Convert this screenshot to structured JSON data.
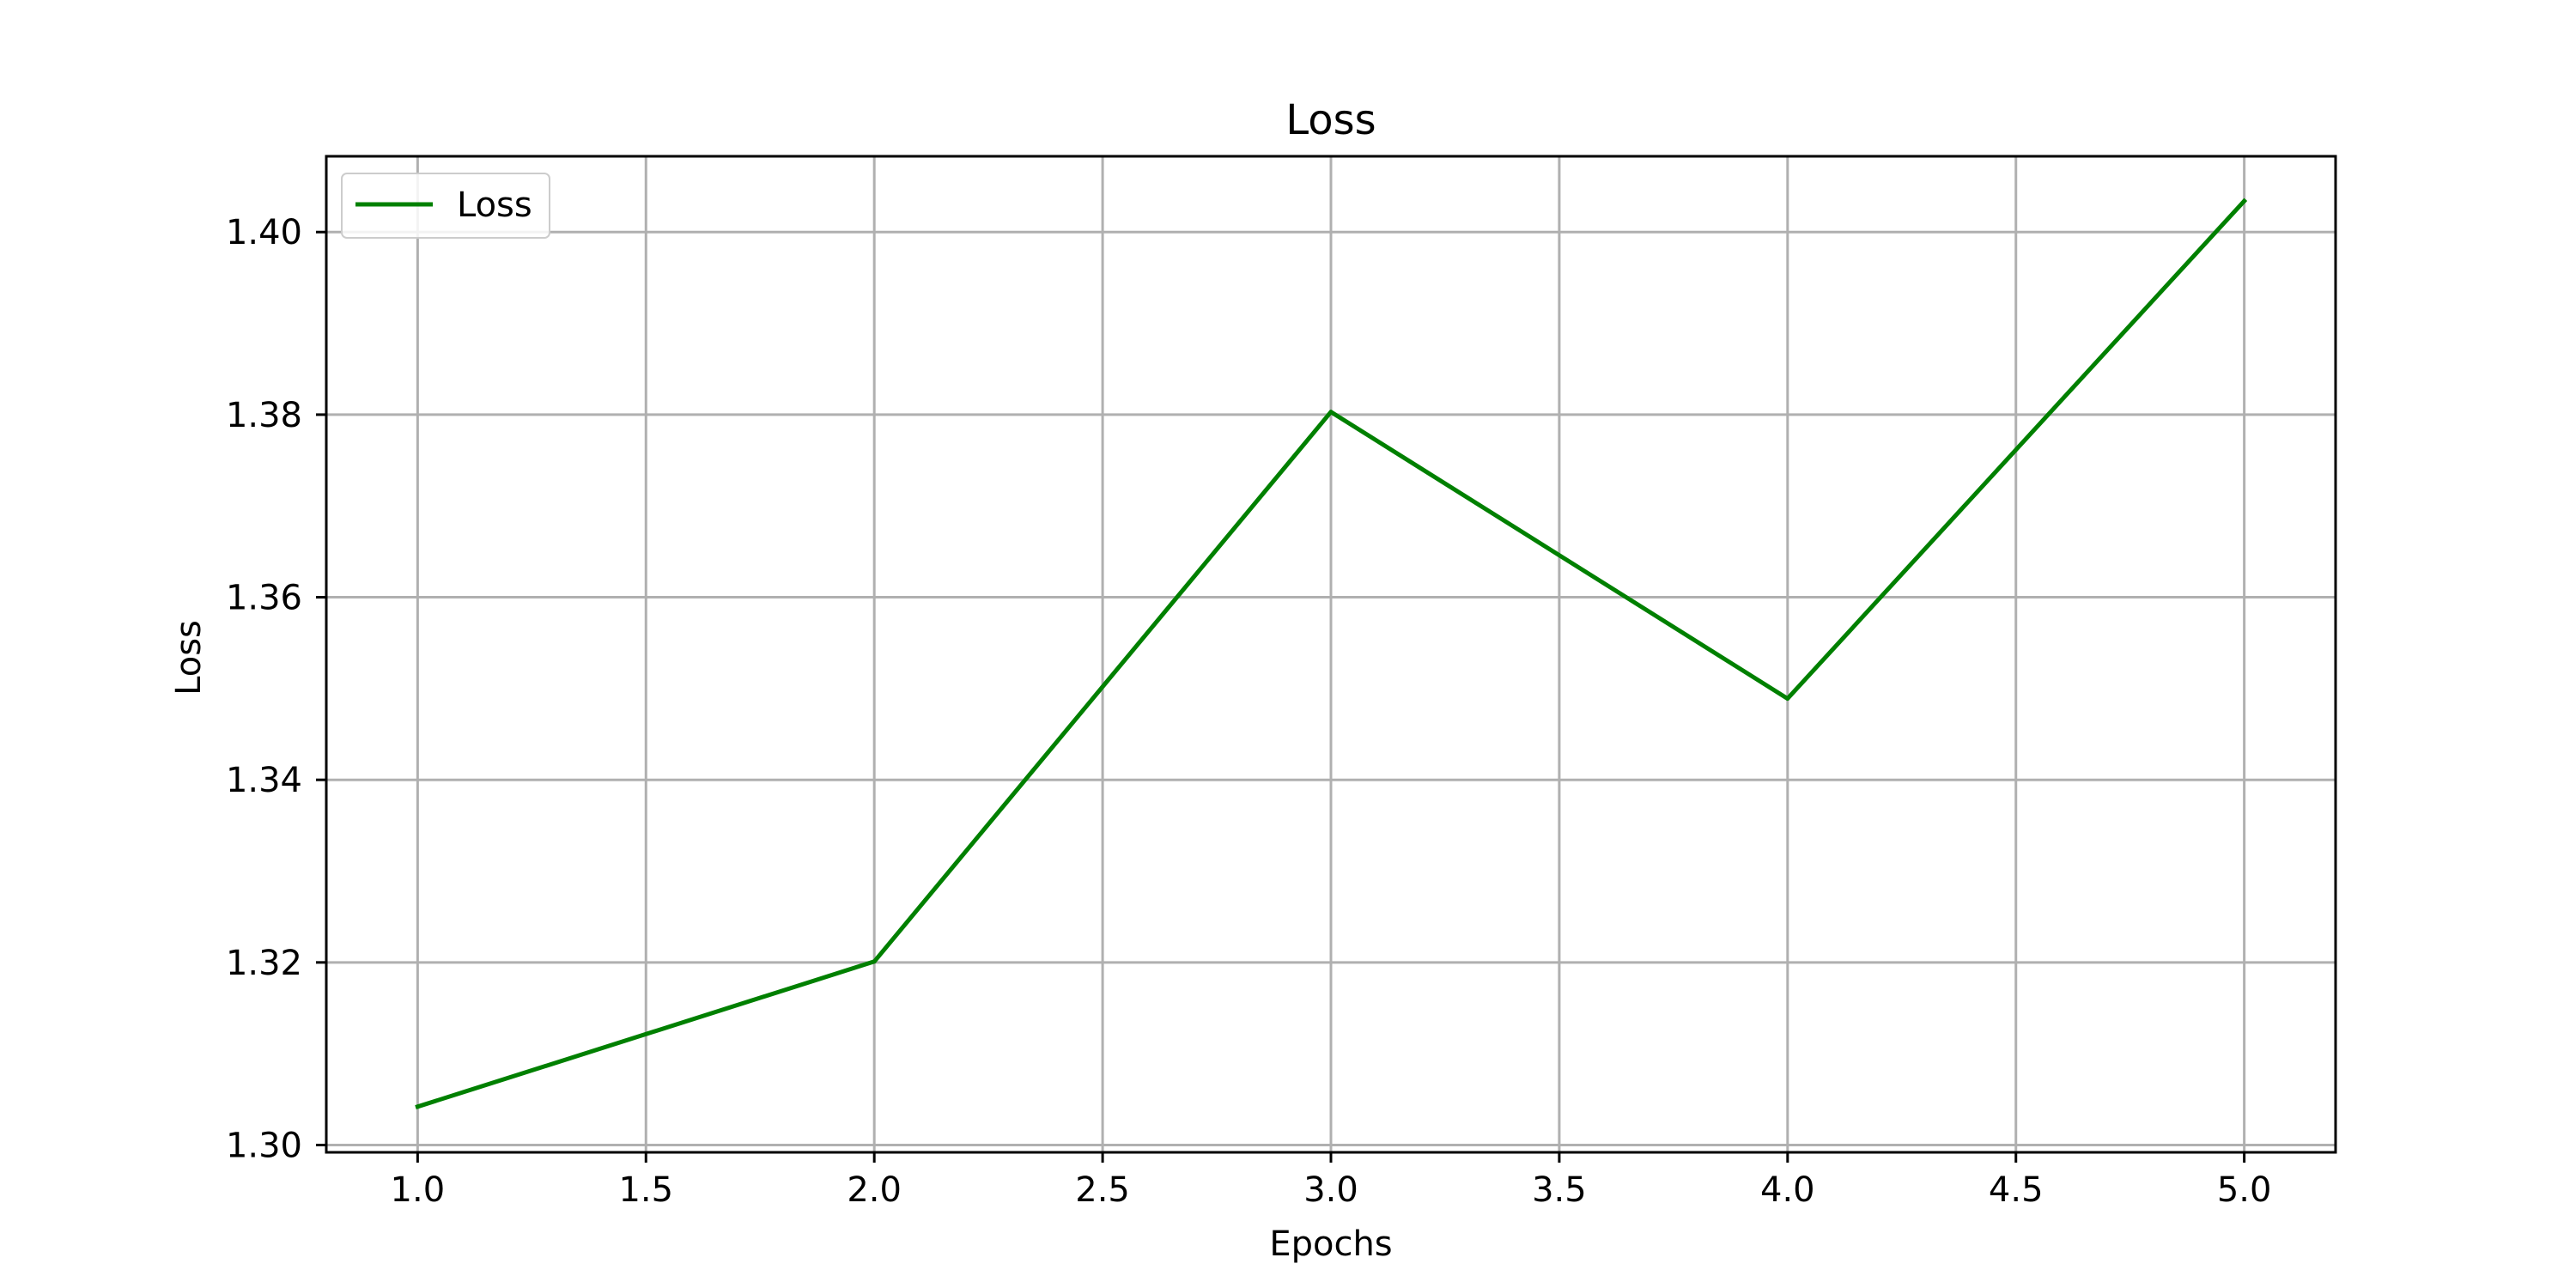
{
  "chart_data": {
    "type": "line",
    "title": "Loss",
    "xlabel": "Epochs",
    "ylabel": "Loss",
    "x": [
      1.0,
      2.0,
      3.0,
      4.0,
      5.0
    ],
    "series": [
      {
        "name": "Loss",
        "values": [
          1.3042,
          1.3201,
          1.3803,
          1.3489,
          1.4034
        ],
        "color": "#008000"
      }
    ],
    "xlim": [
      0.8,
      5.2
    ],
    "ylim": [
      1.2992,
      1.4083
    ],
    "x_ticks": [
      1.0,
      1.5,
      2.0,
      2.5,
      3.0,
      3.5,
      4.0,
      4.5,
      5.0
    ],
    "x_tick_labels": [
      "1.0",
      "1.5",
      "2.0",
      "2.5",
      "3.0",
      "3.5",
      "4.0",
      "4.5",
      "5.0"
    ],
    "y_ticks": [
      1.3,
      1.32,
      1.34,
      1.36,
      1.38,
      1.4
    ],
    "y_tick_labels": [
      "1.30",
      "1.32",
      "1.34",
      "1.36",
      "1.38",
      "1.40"
    ],
    "grid": true,
    "legend_position": "top-left"
  },
  "colors": {
    "series": "#008000",
    "grid": "#b0b0b0",
    "frame": "#000000",
    "background": "#ffffff",
    "legend_border": "#cccccc"
  }
}
